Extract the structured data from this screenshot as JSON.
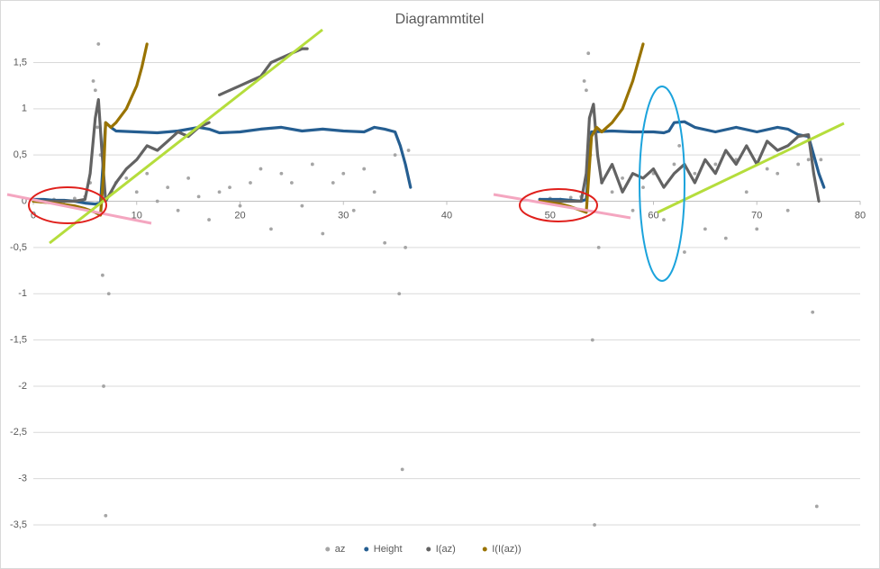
{
  "chart_data": {
    "type": "scatter",
    "title": "Diagrammtitel",
    "xlim": [
      0,
      80
    ],
    "xticks": [
      0,
      10,
      20,
      30,
      40,
      50,
      60,
      70,
      80
    ],
    "ylim": [
      -3.5,
      1.75
    ],
    "yticks": [
      {
        "value": 1.5,
        "label": "1,5"
      },
      1,
      {
        "value": 0.5,
        "label": "0,5"
      },
      0,
      {
        "value": -0.5,
        "label": "-0,5"
      },
      -1,
      {
        "value": -1.5,
        "label": "-1,5"
      },
      -2,
      {
        "value": -2.5,
        "label": "-2,5"
      },
      -3,
      {
        "value": -3.5,
        "label": "-3,5"
      }
    ],
    "grid": true,
    "legend": "bottom",
    "series": [
      {
        "name": "az",
        "color": "#a5a5a5",
        "mode": "markers",
        "x": [
          0,
          1,
          2,
          3,
          4,
          5,
          5.5,
          5.8,
          6.0,
          6.2,
          6.3,
          6.5,
          6.7,
          6.8,
          7.0,
          7.3,
          7.6,
          8,
          9,
          10,
          11,
          12,
          13,
          14,
          15,
          16,
          17,
          18,
          19,
          20,
          21,
          22,
          23,
          24,
          25,
          26,
          27,
          28,
          29,
          30,
          31,
          32,
          33,
          34,
          35,
          35.4,
          35.7,
          36,
          36.3,
          49,
          50,
          51,
          52,
          53,
          53.3,
          53.5,
          53.7,
          53.9,
          54.1,
          54.3,
          54.7,
          55,
          56,
          57,
          58,
          59,
          60,
          61,
          62,
          62.5,
          63,
          64,
          65,
          66,
          67,
          68,
          69,
          70,
          71,
          72,
          73,
          74,
          75,
          75.4,
          75.8,
          76.2
        ],
        "values": [
          0.02,
          0.01,
          0.02,
          0,
          0.03,
          0.05,
          0.2,
          1.3,
          1.2,
          0.8,
          1.7,
          0.5,
          -0.8,
          -2.0,
          -3.4,
          -1.0,
          0.1,
          0.2,
          0.25,
          0.1,
          0.3,
          0.0,
          0.15,
          -0.1,
          0.25,
          0.05,
          -0.2,
          0.1,
          0.15,
          -0.05,
          0.2,
          0.35,
          -0.3,
          0.3,
          0.2,
          -0.05,
          0.4,
          -0.35,
          0.2,
          0.3,
          -0.1,
          0.35,
          0.1,
          -0.45,
          0.5,
          -1.0,
          -2.9,
          -0.5,
          0.55,
          0.02,
          0.03,
          0.02,
          0.04,
          0.05,
          1.3,
          1.2,
          1.6,
          0.5,
          -1.5,
          -3.5,
          -0.5,
          0.2,
          0.1,
          0.25,
          -0.1,
          0.15,
          0.3,
          -0.2,
          0.4,
          0.6,
          -0.55,
          0.3,
          -0.3,
          0.4,
          -0.4,
          0.45,
          0.1,
          -0.3,
          0.35,
          0.3,
          -0.1,
          0.4,
          0.45,
          -1.2,
          -3.3,
          0.45
        ]
      },
      {
        "name": "Height",
        "color": "#255e91",
        "mode": "line",
        "x": [
          0,
          1,
          2,
          3,
          4,
          5,
          6,
          6.5,
          7,
          7.5,
          8,
          10,
          12,
          14,
          15,
          16,
          17,
          18,
          20,
          22,
          24,
          26,
          28,
          30,
          32,
          33,
          34,
          35,
          35.5,
          36,
          36.5,
          null,
          49,
          50,
          51,
          52,
          53,
          53.5,
          54,
          56,
          58,
          60,
          61,
          61.5,
          62,
          63,
          64,
          66,
          68,
          70,
          72,
          73,
          74,
          75,
          75.5,
          76,
          76.5
        ],
        "values": [
          0.02,
          0.02,
          0.01,
          0.01,
          0,
          -0.02,
          -0.03,
          -0.02,
          0.85,
          0.8,
          0.76,
          0.75,
          0.74,
          0.76,
          0.78,
          0.8,
          0.78,
          0.74,
          0.75,
          0.78,
          0.8,
          0.76,
          0.78,
          0.76,
          0.75,
          0.8,
          0.78,
          0.75,
          0.6,
          0.4,
          0.15,
          null,
          0.02,
          0.02,
          0.02,
          0.01,
          0,
          0.02,
          0.75,
          0.76,
          0.75,
          0.75,
          0.74,
          0.76,
          0.85,
          0.86,
          0.8,
          0.75,
          0.8,
          0.75,
          0.8,
          0.78,
          0.72,
          0.7,
          0.5,
          0.3,
          0.15
        ]
      },
      {
        "name": "I(az)",
        "color": "#636363",
        "mode": "line",
        "x": [
          0,
          2,
          4,
          5,
          5.5,
          6,
          6.3,
          6.6,
          7.0,
          7.5,
          8,
          9,
          10,
          11,
          12,
          13,
          14,
          15,
          16,
          17,
          null,
          18,
          19,
          20,
          21,
          22,
          23,
          24,
          25,
          26,
          26.5,
          null,
          49,
          51,
          53,
          53.5,
          53.8,
          54.2,
          54.6,
          55,
          56,
          57,
          58,
          59,
          60,
          61,
          62,
          63,
          64,
          65,
          66,
          67,
          68,
          69,
          70,
          71,
          72,
          73,
          74,
          75,
          75.5,
          76
        ],
        "values": [
          0,
          0,
          0,
          0.02,
          0.3,
          0.9,
          1.1,
          0.6,
          0.0,
          0.1,
          0.2,
          0.35,
          0.45,
          0.6,
          0.55,
          0.65,
          0.75,
          0.7,
          0.8,
          0.85,
          null,
          1.15,
          1.2,
          1.25,
          1.3,
          1.35,
          1.5,
          1.55,
          1.6,
          1.65,
          1.65,
          null,
          0,
          0,
          0,
          0.3,
          0.9,
          1.05,
          0.5,
          0.2,
          0.4,
          0.1,
          0.3,
          0.25,
          0.35,
          0.15,
          0.3,
          0.4,
          0.2,
          0.45,
          0.3,
          0.55,
          0.4,
          0.6,
          0.4,
          0.65,
          0.55,
          0.6,
          0.7,
          0.72,
          0.3,
          0
        ]
      },
      {
        "name": "I(I(az))",
        "color": "#997300",
        "mode": "line",
        "x": [
          0,
          2,
          4,
          5,
          5.5,
          6,
          6.5,
          6.8,
          7,
          7.5,
          8,
          9,
          10,
          10.5,
          11,
          null,
          49,
          51,
          52,
          53,
          53.5,
          54,
          54.5,
          55,
          56,
          57,
          58,
          59
        ],
        "values": [
          0,
          -0.02,
          -0.05,
          -0.08,
          -0.1,
          -0.12,
          -0.15,
          0.3,
          0.85,
          0.8,
          0.85,
          1.0,
          1.25,
          1.45,
          1.7,
          null,
          0,
          -0.03,
          -0.06,
          -0.1,
          -0.12,
          0.7,
          0.8,
          0.75,
          0.85,
          1.0,
          1.3,
          1.7
        ]
      }
    ]
  }
}
